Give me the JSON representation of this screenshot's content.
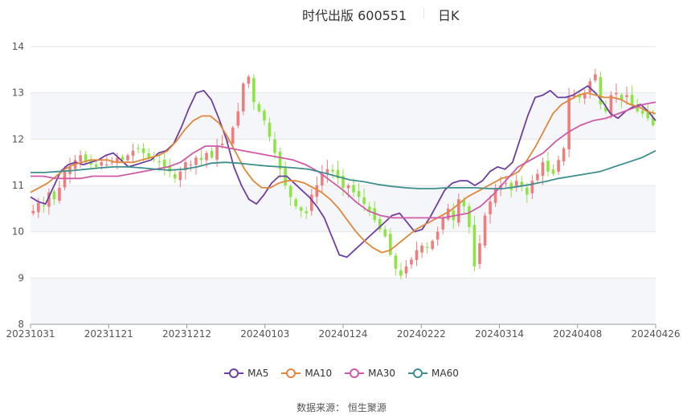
{
  "header": {
    "title": "时代出版 600551",
    "period": "日K"
  },
  "source": "数据来源： 恒生聚源",
  "colors": {
    "up": "#f07d7d",
    "down": "#8de543",
    "ma5": "#6e3fa3",
    "ma10": "#e0883b",
    "ma30": "#cf5aa8",
    "ma60": "#3f8f8f",
    "grid": "#e6e6e6",
    "band": "#f5f6fa"
  },
  "chart_data": {
    "type": "candlestick",
    "title": "时代出版 600551 日K",
    "ylim": [
      8,
      14
    ],
    "yticks": [
      8,
      9,
      10,
      11,
      12,
      13,
      14
    ],
    "xticks": [
      "20231031",
      "20231121",
      "20231212",
      "20240103",
      "20240124",
      "20240222",
      "20240314",
      "20240408",
      "20240426"
    ],
    "legend": [
      "MA5",
      "MA10",
      "MA30",
      "MA60"
    ],
    "num_days": 119,
    "close_approx": [
      10.45,
      10.62,
      10.55,
      10.85,
      10.7,
      10.95,
      11.3,
      11.4,
      11.55,
      11.65,
      11.5,
      11.45,
      11.4,
      11.5,
      11.45,
      11.5,
      11.6,
      11.55,
      11.65,
      11.75,
      11.8,
      11.7,
      11.6,
      11.55,
      11.5,
      11.4,
      11.3,
      11.15,
      11.3,
      11.5,
      11.45,
      11.6,
      11.55,
      11.7,
      11.6,
      11.85,
      11.9,
      11.95,
      12.25,
      12.6,
      13.2,
      13.35,
      12.8,
      12.6,
      12.4,
      12.05,
      11.7,
      11.35,
      11.0,
      10.75,
      10.55,
      10.45,
      10.4,
      10.8,
      11.0,
      11.25,
      11.35,
      11.3,
      11.15,
      10.95,
      11.0,
      10.85,
      10.75,
      10.6,
      10.45,
      10.25,
      10.05,
      9.9,
      9.5,
      9.2,
      9.05,
      9.25,
      9.4,
      9.6,
      9.7,
      9.65,
      9.8,
      10.0,
      10.3,
      10.5,
      10.25,
      10.7,
      10.55,
      10.1,
      9.25,
      9.75,
      10.35,
      10.65,
      10.95,
      11.0,
      11.05,
      10.9,
      11.1,
      11.0,
      10.8,
      11.1,
      11.25,
      11.5,
      11.3,
      11.25,
      11.55,
      11.8,
      12.9,
      12.95,
      12.9,
      13.0,
      13.25,
      13.4,
      12.75,
      12.6,
      12.95,
      13.0,
      12.85,
      12.95,
      12.75,
      12.6,
      12.55,
      12.45,
      12.3
    ],
    "series": [
      {
        "name": "MA5",
        "values": [
          10.75,
          10.65,
          10.6,
          10.95,
          11.3,
          11.45,
          11.5,
          11.45,
          11.5,
          11.55,
          11.65,
          11.7,
          11.55,
          11.4,
          11.45,
          11.5,
          11.55,
          11.7,
          11.75,
          11.9,
          12.25,
          12.65,
          13.0,
          13.05,
          12.85,
          12.45,
          12.0,
          11.4,
          11.0,
          10.7,
          10.6,
          10.8,
          11.05,
          11.2,
          11.2,
          11.05,
          10.9,
          10.75,
          10.55,
          10.3,
          9.9,
          9.5,
          9.45,
          9.6,
          9.75,
          9.9,
          10.05,
          10.2,
          10.35,
          10.4,
          10.2,
          10.0,
          10.05,
          10.3,
          10.6,
          10.9,
          11.05,
          11.1,
          11.1,
          11.0,
          11.1,
          11.3,
          11.4,
          11.35,
          11.5,
          12.0,
          12.5,
          12.9,
          12.95,
          13.05,
          12.9,
          12.9,
          12.95,
          13.05,
          13.15,
          13.0,
          12.8,
          12.55,
          12.45,
          12.6,
          12.7,
          12.75,
          12.6,
          12.4
        ]
      },
      {
        "name": "MA10",
        "values": [
          10.85,
          10.95,
          11.05,
          11.2,
          11.35,
          11.45,
          11.5,
          11.55,
          11.55,
          11.55,
          11.5,
          11.5,
          11.5,
          11.55,
          11.6,
          11.65,
          11.75,
          11.95,
          12.2,
          12.4,
          12.5,
          12.5,
          12.35,
          12.05,
          11.7,
          11.35,
          11.1,
          10.95,
          10.95,
          11.05,
          11.1,
          11.1,
          11.05,
          10.95,
          10.85,
          10.7,
          10.5,
          10.25,
          10.0,
          9.8,
          9.65,
          9.55,
          9.6,
          9.75,
          9.9,
          10.05,
          10.15,
          10.25,
          10.35,
          10.45,
          10.6,
          10.75,
          10.85,
          10.95,
          11.05,
          11.15,
          11.2,
          11.3,
          11.55,
          11.85,
          12.2,
          12.55,
          12.75,
          12.85,
          12.95,
          13.0,
          12.95,
          12.9,
          12.9,
          12.85,
          12.75,
          12.7,
          12.6,
          12.55
        ]
      },
      {
        "name": "MA30",
        "values": [
          11.2,
          11.2,
          11.15,
          11.15,
          11.15,
          11.2,
          11.2,
          11.2,
          11.25,
          11.3,
          11.35,
          11.4,
          11.5,
          11.7,
          11.85,
          11.85,
          11.8,
          11.75,
          11.7,
          11.65,
          11.6,
          11.55,
          11.45,
          11.3,
          11.1,
          10.9,
          10.65,
          10.45,
          10.35,
          10.3,
          10.3,
          10.3,
          10.3,
          10.3,
          10.35,
          10.4,
          10.55,
          10.8,
          11.1,
          11.4,
          11.55,
          11.7,
          11.95,
          12.15,
          12.3,
          12.4,
          12.45,
          12.55,
          12.65,
          12.75,
          12.8
        ]
      },
      {
        "name": "MA60",
        "values": [
          11.28,
          11.28,
          11.3,
          11.32,
          11.35,
          11.38,
          11.4,
          11.4,
          11.38,
          11.35,
          11.33,
          11.35,
          11.4,
          11.48,
          11.5,
          11.48,
          11.45,
          11.42,
          11.4,
          11.38,
          11.35,
          11.28,
          11.2,
          11.12,
          11.08,
          11.02,
          10.98,
          10.95,
          10.93,
          10.93,
          10.95,
          10.95,
          10.95,
          10.93,
          10.93,
          10.97,
          11.02,
          11.08,
          11.15,
          11.2,
          11.25,
          11.3,
          11.4,
          11.5,
          11.6,
          11.75
        ]
      }
    ]
  }
}
